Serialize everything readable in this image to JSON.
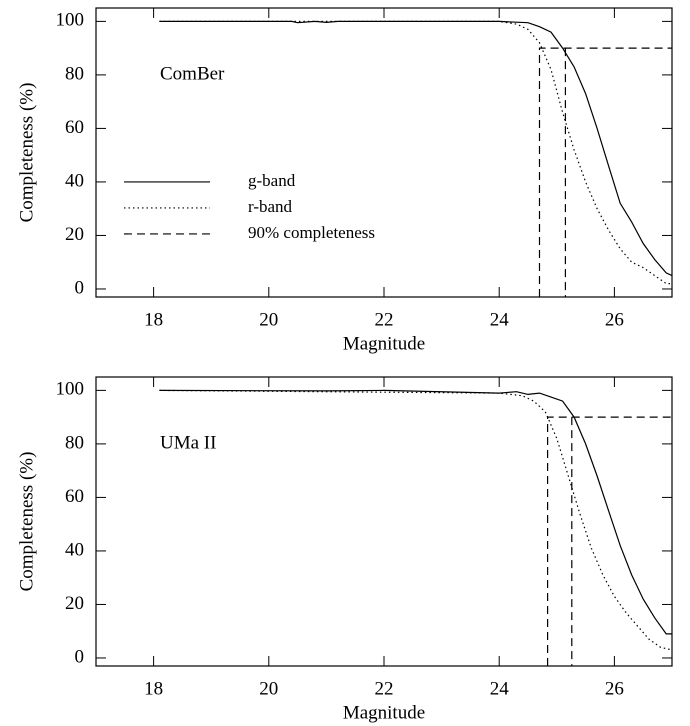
{
  "chart_data": [
    {
      "type": "line",
      "annotation": "ComBer",
      "x_label": "Magnitude",
      "y_label": "Completeness (%)",
      "xlim": [
        17,
        27
      ],
      "xticks": [
        18,
        20,
        22,
        24,
        26
      ],
      "ylim": [
        -3,
        105
      ],
      "yticks": [
        0,
        20,
        40,
        60,
        80,
        100
      ],
      "legend": "center-left",
      "series": [
        {
          "name": "g-band",
          "color": "#000",
          "dash": "solid",
          "x": [
            18.1,
            20.4,
            20.5,
            20.8,
            21,
            21.2,
            24,
            24.5,
            24.7,
            24.9,
            25.1,
            25.3,
            25.5,
            25.7,
            25.9,
            26.1,
            26.3,
            26.5,
            26.7,
            26.9,
            27
          ],
          "values": [
            100,
            100,
            99.5,
            100,
            99.6,
            100,
            100,
            99.5,
            98,
            96,
            90,
            83,
            73,
            60,
            46,
            32,
            25,
            17,
            11,
            6,
            5
          ]
        },
        {
          "name": "r-band",
          "color": "#000",
          "dash": "dotted",
          "x": [
            18.1,
            24,
            24.3,
            24.5,
            24.7,
            24.9,
            25.1,
            25.3,
            25.5,
            25.7,
            25.9,
            26.1,
            26.3,
            26.5,
            26.7,
            26.9,
            27
          ],
          "values": [
            100,
            100,
            99,
            97,
            92,
            82,
            66,
            52,
            40,
            30,
            22,
            15,
            10,
            8,
            5,
            2,
            2
          ]
        },
        {
          "name": "90% completeness",
          "color": "#000",
          "dash": "dashed",
          "x": [
            24.7,
            24.7,
            27,
            25.15,
            25.15,
            25.15
          ],
          "values": [
            -3,
            90,
            90,
            null,
            90,
            -3
          ]
        }
      ]
    },
    {
      "type": "line",
      "annotation": "UMa II",
      "x_label": "Magnitude",
      "y_label": "Completeness (%)",
      "xlim": [
        17,
        27
      ],
      "xticks": [
        18,
        20,
        22,
        24,
        26
      ],
      "ylim": [
        -3,
        105
      ],
      "yticks": [
        0,
        20,
        40,
        60,
        80,
        100
      ],
      "series": [
        {
          "color": "#000",
          "dash": "solid",
          "x": [
            18.1,
            21,
            22,
            24,
            24.3,
            24.5,
            24.7,
            24.9,
            25.1,
            25.3,
            25.5,
            25.7,
            25.9,
            26.1,
            26.3,
            26.5,
            26.7,
            26.9,
            27
          ],
          "values": [
            100,
            99.8,
            100,
            99,
            99.5,
            98.5,
            99,
            97.5,
            96,
            90,
            80,
            68,
            55,
            42,
            31,
            22,
            15,
            9,
            9
          ]
        },
        {
          "color": "#000",
          "dash": "dotted",
          "x": [
            18.1,
            24,
            24.4,
            24.6,
            24.8,
            25,
            25.2,
            25.4,
            25.6,
            25.8,
            26,
            26.2,
            26.4,
            26.6,
            26.8,
            27
          ],
          "values": [
            100,
            99,
            98,
            96,
            92,
            82,
            68,
            54,
            41,
            31,
            23,
            17,
            12,
            7,
            4,
            3
          ]
        },
        {
          "color": "#000",
          "dash": "dashed",
          "x": [
            24.84,
            24.84,
            27,
            25.26,
            25.26,
            25.26
          ],
          "values": [
            -3,
            90,
            90,
            null,
            90,
            -3
          ]
        }
      ]
    }
  ]
}
